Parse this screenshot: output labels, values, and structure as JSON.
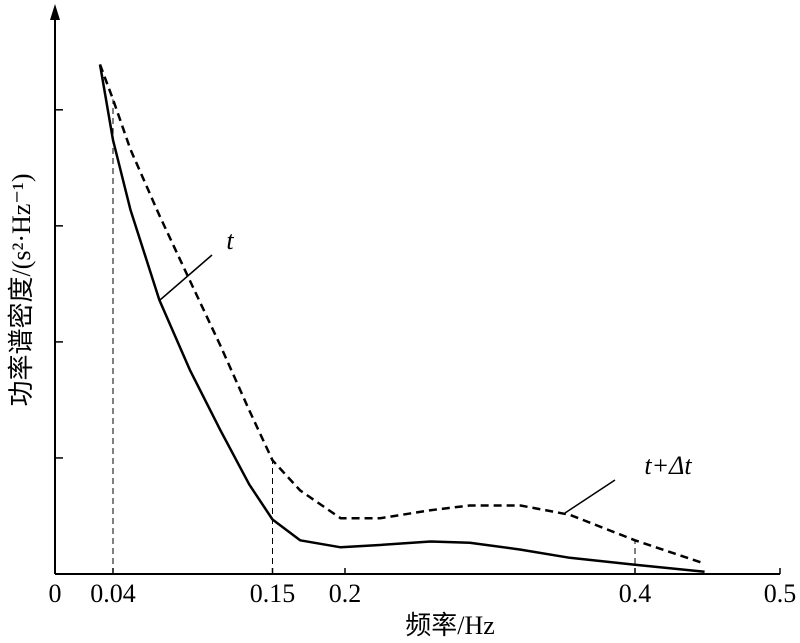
{
  "chart_data": {
    "type": "line",
    "x_label": "频率/Hz",
    "y_label": "功率谱密度/(s²·Hz⁻¹)",
    "x": [
      0.031,
      0.04,
      0.052,
      0.072,
      0.093,
      0.114,
      0.134,
      0.15,
      0.169,
      0.197,
      0.224,
      0.259,
      0.286,
      0.321,
      0.355,
      0.4,
      0.448
    ],
    "series": [
      {
        "name": "t",
        "color": "#000000",
        "dashed": false,
        "values": [
          4.39,
          3.74,
          3.14,
          2.36,
          1.76,
          1.24,
          0.77,
          0.47,
          0.29,
          0.23,
          0.25,
          0.28,
          0.27,
          0.21,
          0.14,
          0.08,
          0.02
        ]
      },
      {
        "name": "t+Δt",
        "color": "#000000",
        "dashed": true,
        "values": [
          4.39,
          4.09,
          3.66,
          3.09,
          2.53,
          1.97,
          1.41,
          0.98,
          0.72,
          0.48,
          0.48,
          0.55,
          0.59,
          0.59,
          0.51,
          0.29,
          0.09
        ]
      }
    ],
    "xlim": [
      0,
      0.5
    ],
    "xticks": [
      0,
      0.04,
      0.15,
      0.2,
      0.4,
      0.5
    ],
    "ylim": [
      0,
      4.86
    ],
    "yticks": [
      1,
      2,
      3,
      4
    ],
    "reference_lines": [
      0.04,
      0.15,
      0.4
    ]
  }
}
